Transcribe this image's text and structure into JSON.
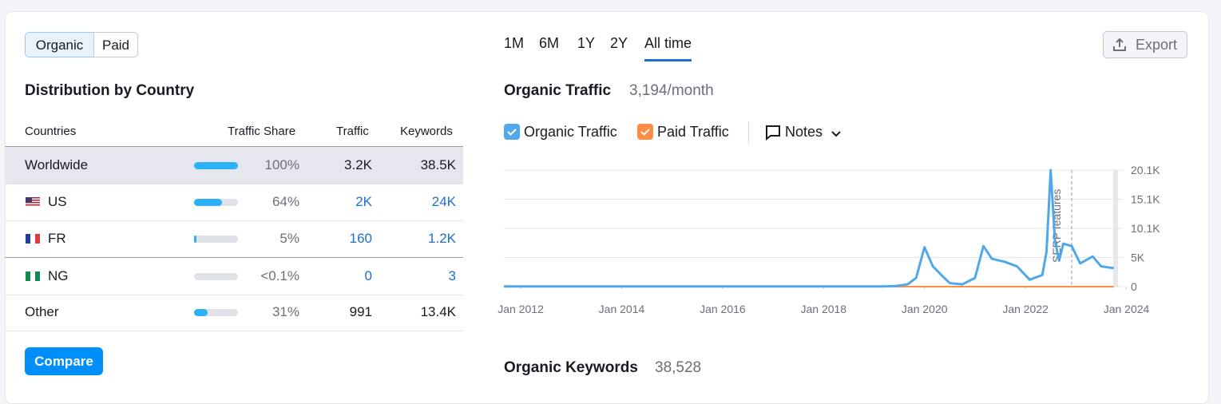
{
  "tabs": {
    "items": [
      "Organic",
      "Paid"
    ],
    "active": 0
  },
  "periods": {
    "items": [
      "1M",
      "6M",
      "1Y",
      "2Y",
      "All time"
    ],
    "active": 4
  },
  "export": "Export",
  "distribution": {
    "title": "Distribution by Country",
    "columns": [
      "Countries",
      "Traffic Share",
      "Traffic",
      "Keywords"
    ],
    "rows": [
      {
        "country": "Worldwide",
        "share": {
          "value": 100,
          "label": "100%"
        },
        "traffic": "3.2K",
        "keywords": "38.5K"
      },
      {
        "country": "US",
        "share": {
          "value": 64,
          "label": "64%"
        },
        "traffic": "2K",
        "keywords": "24K"
      },
      {
        "country": "FR",
        "share": {
          "value": 5,
          "label": "5%"
        },
        "traffic": "160",
        "keywords": "1.2K"
      },
      {
        "country": "NG",
        "share": {
          "value": 0.05,
          "label": "<0.1%"
        },
        "traffic": "0",
        "keywords": "3"
      },
      {
        "country": "Other",
        "share": {
          "value": 31,
          "label": "31%"
        },
        "traffic": "991",
        "keywords": "13.4K"
      }
    ]
  },
  "compare": "Compare",
  "chart_data": {
    "type": "line",
    "title": "Organic Traffic",
    "subtitle": "3,194/month",
    "notes": "Notes",
    "annotation": {
      "x": "2022-12",
      "label": "SERP features"
    },
    "x": [
      "2011-09",
      "2013-01",
      "2015-01",
      "2017-01",
      "2019-03",
      "2019-06",
      "2019-09",
      "2019-11",
      "2020-01",
      "2020-03",
      "2020-05",
      "2020-07",
      "2020-10",
      "2021-01",
      "2021-03",
      "2021-05",
      "2021-08",
      "2021-11",
      "2022-02",
      "2022-05",
      "2022-06",
      "2022-07",
      "2022-08",
      "2022-09",
      "2022-10",
      "2022-12",
      "2023-02",
      "2023-05",
      "2023-07",
      "2023-10"
    ],
    "series": [
      {
        "name": "Organic Traffic",
        "color": "#50a8ea",
        "values": [
          30,
          30,
          30,
          30,
          30,
          100,
          400,
          1500,
          6800,
          3500,
          2000,
          600,
          400,
          1500,
          7000,
          4800,
          4300,
          3500,
          1200,
          2000,
          6000,
          20100,
          8000,
          4500,
          7400,
          7000,
          4000,
          5200,
          3500,
          3194
        ]
      },
      {
        "name": "Paid Traffic",
        "color": "#ff8c42",
        "values": [
          0,
          0,
          0,
          0,
          0,
          0,
          0,
          0,
          0,
          0,
          0,
          0,
          0,
          0,
          0,
          0,
          0,
          0,
          0,
          0,
          0,
          0,
          0,
          0,
          0,
          0,
          0,
          0,
          0,
          0
        ]
      }
    ],
    "xlim": [
      "2011-09",
      "2023-11"
    ],
    "xticks": [
      {
        "value": "2012-01",
        "label": "Jan 2012"
      },
      {
        "value": "2014-01",
        "label": "Jan 2014"
      },
      {
        "value": "2016-01",
        "label": "Jan 2016"
      },
      {
        "value": "2018-01",
        "label": "Jan 2018"
      },
      {
        "value": "2020-01",
        "label": "Jan 2020"
      },
      {
        "value": "2022-01",
        "label": "Jan 2022"
      },
      {
        "value": "2024-01",
        "label": "Jan 2024"
      }
    ],
    "ylim": [
      0,
      20100
    ],
    "yticks": [
      0,
      {
        "value": 5025,
        "label": "5K"
      },
      {
        "value": 10050,
        "label": "10.1K"
      },
      {
        "value": 15075,
        "label": "15.1K"
      },
      {
        "value": 20100,
        "label": "20.1K"
      }
    ],
    "grid": true
  },
  "keywords_section": {
    "title": "Organic Keywords",
    "value": "38,528"
  }
}
